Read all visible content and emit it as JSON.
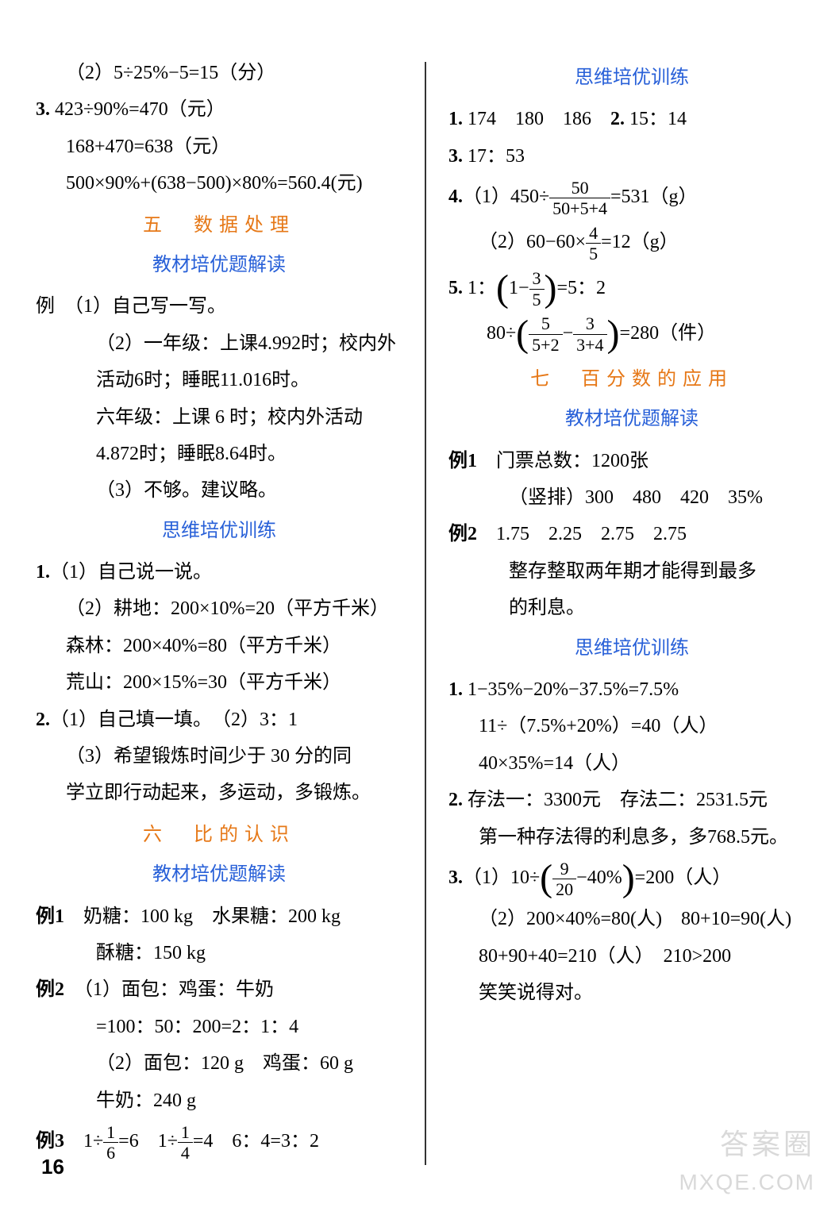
{
  "left": {
    "top1": "（2）5÷25%−5=15（分）",
    "q3_1": "3. 423÷90%=470（元）",
    "q3_2": "168+470=638（元）",
    "q3_3": "500×90%+(638−500)×80%=560.4(元)",
    "sec5_title": "五　数据处理",
    "sec5_sub1": "教材培优题解读",
    "ex1": "例　（1）自己写一写。",
    "ex2": "（2）一年级：上课4.992时；校内外",
    "ex3": "活动6时；睡眠11.016时。",
    "ex4": "六年级：上课 6 时；校内外活动",
    "ex5": "4.872时；睡眠8.64时。",
    "ex6": "（3）不够。建议略。",
    "sec5_sub2": "思维培优训练",
    "t1_1": "1.（1）自己说一说。",
    "t1_2": "（2）耕地：200×10%=20（平方千米）",
    "t1_3": "森林：200×40%=80（平方千米）",
    "t1_4": "荒山：200×15%=30（平方千米）",
    "t2_1": "2.（1）自己填一填。　（2）3：1",
    "t2_2": "（3）希望锻炼时间少于 30 分的同",
    "t2_3": "学立即行动起来，多运动，多锻炼。",
    "sec6_title": "六　比的认识",
    "sec6_sub1": "教材培优题解读",
    "e6_1_1": "例1　奶糖：100 kg　水果糖：200 kg",
    "e6_1_2": "酥糖：150 kg",
    "e6_2_1": "例2　（1）面包：鸡蛋：牛奶",
    "e6_2_2": "=100：50：200=2：1：4",
    "e6_2_3": "（2）面包：120 g　鸡蛋：60 g",
    "e6_2_4": "牛奶：240 g",
    "e6_3_pre": "例3　1÷",
    "e6_3_mid": "=6　1÷",
    "e6_3_end": "=4　6：4=3：2",
    "frac_1_6_num": "1",
    "frac_1_6_den": "6",
    "frac_1_4_num": "1",
    "frac_1_4_den": "4"
  },
  "right": {
    "sec_sub1": "思维培优训练",
    "r1": "1. 174　180　186　2. 15：14",
    "r3": "3. 17：53",
    "r4_pre": "4.（1）450÷",
    "r4_frac_num": "50",
    "r4_frac_den": "50+5+4",
    "r4_post": "=531（g）",
    "r4_2_pre": "（2）60−60×",
    "r4_2_num": "4",
    "r4_2_den": "5",
    "r4_2_post": "=12（g）",
    "r5_pre": "5. 1：",
    "r5_mid": "1−",
    "r5_num": "3",
    "r5_den": "5",
    "r5_post": "=5：2",
    "r5b_pre": "80÷",
    "r5b_f1_num": "5",
    "r5b_f1_den": "5+2",
    "r5b_minus": "−",
    "r5b_f2_num": "3",
    "r5b_f2_den": "3+4",
    "r5b_post": "=280（件）",
    "sec7_title": "七　百分数的应用",
    "sec7_sub1": "教材培优题解读",
    "e7_1_1": "例1　门票总数：1200张",
    "e7_1_2": "（竖排）300　480　420　35%",
    "e7_2_1": "例2　1.75　2.25　2.75　2.75",
    "e7_2_2": "整存整取两年期才能得到最多",
    "e7_2_3": "的利息。",
    "sec7_sub2": "思维培优训练",
    "t7_1_1": "1. 1−35%−20%−37.5%=7.5%",
    "t7_1_2": "11÷（7.5%+20%）=40（人）",
    "t7_1_3": "40×35%=14（人）",
    "t7_2_1": "2. 存法一：3300元　存法二：2531.5元",
    "t7_2_2": "第一种存法得的利息多，多768.5元。",
    "t7_3_pre": "3.（1）10÷",
    "t7_3_num": "9",
    "t7_3_den": "20",
    "t7_3_mid": "−40%",
    "t7_3_post": "=200（人）",
    "t7_3_2": "（2）200×40%=80(人)　80+10=90(人)",
    "t7_3_3": "80+90+40=210（人）　210>200",
    "t7_3_4": "笑笑说得对。"
  },
  "page_number": "16",
  "watermark1": "答案圈",
  "watermark2": "MXQE.COM"
}
